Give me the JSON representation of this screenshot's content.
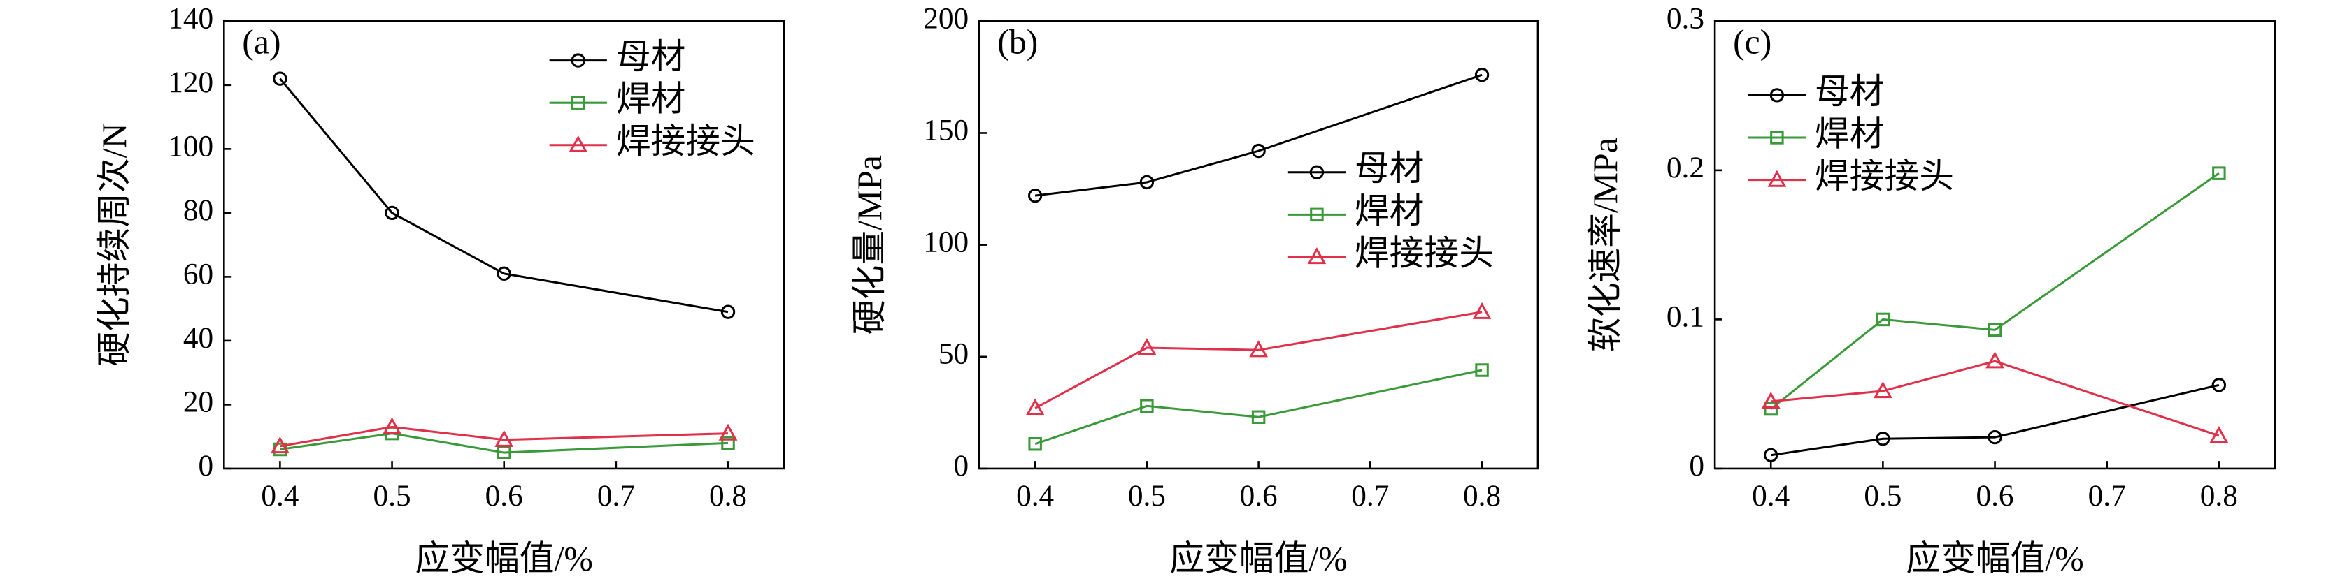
{
  "chart_data": [
    {
      "type": "line",
      "annotation": "(a)",
      "xlabel": "应变幅值/%",
      "ylabel": "硬化持续周次/N",
      "x": [
        0.4,
        0.5,
        0.6,
        0.8
      ],
      "xlim": [
        0.35,
        0.85
      ],
      "xticks": [
        0.4,
        0.5,
        0.6,
        0.7,
        0.8
      ],
      "ylim": [
        0,
        140
      ],
      "yticks": [
        0,
        20,
        40,
        60,
        80,
        100,
        120,
        140
      ],
      "legend": "upper right",
      "series": [
        {
          "name": "母材",
          "color": "#000000",
          "marker": "circle",
          "values": [
            122,
            80,
            61,
            49
          ]
        },
        {
          "name": "焊材",
          "color": "#3a9a3a",
          "marker": "square",
          "values": [
            6,
            11,
            5,
            8
          ]
        },
        {
          "name": "焊接接头",
          "color": "#e0304a",
          "marker": "triangle",
          "values": [
            7,
            13,
            9,
            11
          ]
        }
      ]
    },
    {
      "type": "line",
      "annotation": "(b)",
      "xlabel": "应变幅值/%",
      "ylabel": "硬化量/MPa",
      "x": [
        0.4,
        0.5,
        0.6,
        0.8
      ],
      "xlim": [
        0.35,
        0.85
      ],
      "xticks": [
        0.4,
        0.5,
        0.6,
        0.7,
        0.8
      ],
      "ylim": [
        0,
        200
      ],
      "yticks": [
        0,
        50,
        100,
        150,
        200
      ],
      "legend": "center right",
      "series": [
        {
          "name": "母材",
          "color": "#000000",
          "marker": "circle",
          "values": [
            122,
            128,
            142,
            176
          ]
        },
        {
          "name": "焊材",
          "color": "#3a9a3a",
          "marker": "square",
          "values": [
            11,
            28,
            23,
            44
          ]
        },
        {
          "name": "焊接接头",
          "color": "#e0304a",
          "marker": "triangle",
          "values": [
            27,
            54,
            53,
            70
          ]
        }
      ]
    },
    {
      "type": "line",
      "annotation": "(c)",
      "xlabel": "应变幅值/%",
      "ylabel": "软化速率/MPa",
      "x": [
        0.4,
        0.5,
        0.6,
        0.8
      ],
      "xlim": [
        0.35,
        0.85
      ],
      "xticks": [
        0.4,
        0.5,
        0.6,
        0.7,
        0.8
      ],
      "ylim": [
        0,
        0.3
      ],
      "yticks": [
        0,
        0.1,
        0.2,
        0.3
      ],
      "legend": "upper left",
      "series": [
        {
          "name": "母材",
          "color": "#000000",
          "marker": "circle",
          "values": [
            0.009,
            0.02,
            0.021,
            0.056
          ]
        },
        {
          "name": "焊材",
          "color": "#3a9a3a",
          "marker": "square",
          "values": [
            0.04,
            0.1,
            0.093,
            0.198
          ]
        },
        {
          "name": "焊接接头",
          "color": "#e0304a",
          "marker": "triangle",
          "values": [
            0.045,
            0.052,
            0.072,
            0.022
          ]
        }
      ]
    }
  ]
}
